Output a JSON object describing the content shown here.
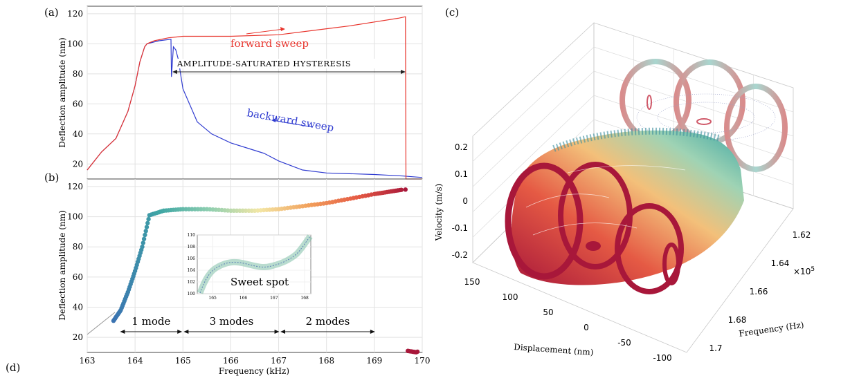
{
  "panel_labels": {
    "a": "(a)",
    "b": "(b)",
    "c": "(c)",
    "d": "(d)"
  },
  "colors": {
    "forward": "#e8332b",
    "backward": "#2f3bd0",
    "grid": "#e2e2e2",
    "colormap": [
      "#3a6fb2",
      "#3fa6a4",
      "#8fcfb0",
      "#f3e7a6",
      "#f2a15c",
      "#e55a44",
      "#a8173a"
    ]
  },
  "chart_data": [
    {
      "panel": "(a)",
      "type": "line",
      "xlim": [
        163,
        170
      ],
      "ylim": [
        10,
        125
      ],
      "ylabel": "Deflection amplitude (nm)",
      "yticks": [
        20,
        40,
        60,
        80,
        100,
        120
      ],
      "grid": true,
      "series": [
        {
          "name": "forward sweep",
          "x": [
            163,
            163.3,
            163.6,
            163.85,
            164.0,
            164.1,
            164.2,
            164.25,
            164.4,
            164.7,
            165,
            166,
            167,
            168,
            168.5,
            169,
            169.5,
            169.65,
            169.66,
            170
          ],
          "y": [
            16,
            28,
            37,
            55,
            72,
            88,
            98,
            100,
            102,
            104,
            105,
            105,
            106,
            110,
            112,
            114.5,
            117,
            118,
            10,
            10
          ]
        },
        {
          "name": "backward sweep",
          "x": [
            163,
            163.3,
            163.6,
            163.85,
            164.0,
            164.1,
            164.2,
            164.25,
            164.5,
            164.75,
            164.76,
            164.8,
            164.85,
            164.9,
            165,
            165.3,
            165.6,
            166,
            166.4,
            166.7,
            167,
            167.5,
            168,
            169,
            169.6,
            170
          ],
          "y": [
            16,
            28,
            37,
            55,
            72,
            88,
            98,
            100,
            102,
            103,
            78,
            98,
            96,
            90,
            70,
            48,
            40,
            34,
            30,
            27,
            22,
            16,
            14,
            13,
            12,
            11
          ]
        }
      ],
      "annotations": [
        {
          "text": "forward sweep",
          "x": 167.1,
          "y": 101
        },
        {
          "text": "backward sweep",
          "x": 167.2,
          "y": 41
        },
        {
          "text": "AMPLITUDE-SATURATED HYSTERESIS",
          "x": 166.1,
          "y": 92
        }
      ]
    },
    {
      "panel": "(b)",
      "type": "scatter",
      "xlim": [
        163,
        170
      ],
      "ylim": [
        10,
        125
      ],
      "xlabel": "Frequency (kHz)",
      "ylabel": "Deflection amplitude (nm)",
      "xticks": [
        163,
        164,
        165,
        166,
        167,
        168,
        169,
        170
      ],
      "yticks": [
        20,
        40,
        60,
        80,
        100,
        120
      ],
      "grid": true,
      "x": [
        163.55,
        163.7,
        163.85,
        164.0,
        164.15,
        164.3,
        164.6,
        165.0,
        165.5,
        166.0,
        166.5,
        167.0,
        167.5,
        168.0,
        168.5,
        169.0,
        169.3,
        169.6,
        169.7,
        169.9
      ],
      "y": [
        31,
        38,
        50,
        64,
        80,
        101,
        104,
        105,
        105,
        104,
        104,
        105,
        107,
        109,
        112,
        115,
        116.5,
        118,
        11,
        10
      ],
      "region_labels": [
        {
          "text": "1 mode",
          "x0": 163.7,
          "x1": 164.97
        },
        {
          "text": "3 modes",
          "x0": 165.03,
          "x1": 167.0
        },
        {
          "text": "2 modes",
          "x0": 167.05,
          "x1": 169.0
        }
      ],
      "inset": {
        "text": "Sweet spot",
        "xlim": [
          164.5,
          168.2
        ],
        "ylim": [
          100,
          110
        ],
        "xticks": [
          165,
          166,
          167,
          168
        ],
        "yticks": [
          100,
          102,
          104,
          106,
          108,
          110
        ]
      }
    },
    {
      "panel": "(c)",
      "type": "scatter",
      "xlabel": "Displacement (nm)",
      "ylabel": "Velocity (m/s)",
      "zlabel": "Frequency (Hz)",
      "exponent": "×10",
      "exponent_power": "5",
      "displacement_ticks": [
        "150",
        "100",
        "50",
        "0",
        "-50",
        "-100"
      ],
      "velocity_ticks": [
        "0.2",
        "0.1",
        "0",
        "-0.1",
        "-0.2"
      ],
      "frequency_ticks": [
        "1.62",
        "1.64",
        "1.66",
        "1.68",
        "1.7"
      ]
    }
  ]
}
